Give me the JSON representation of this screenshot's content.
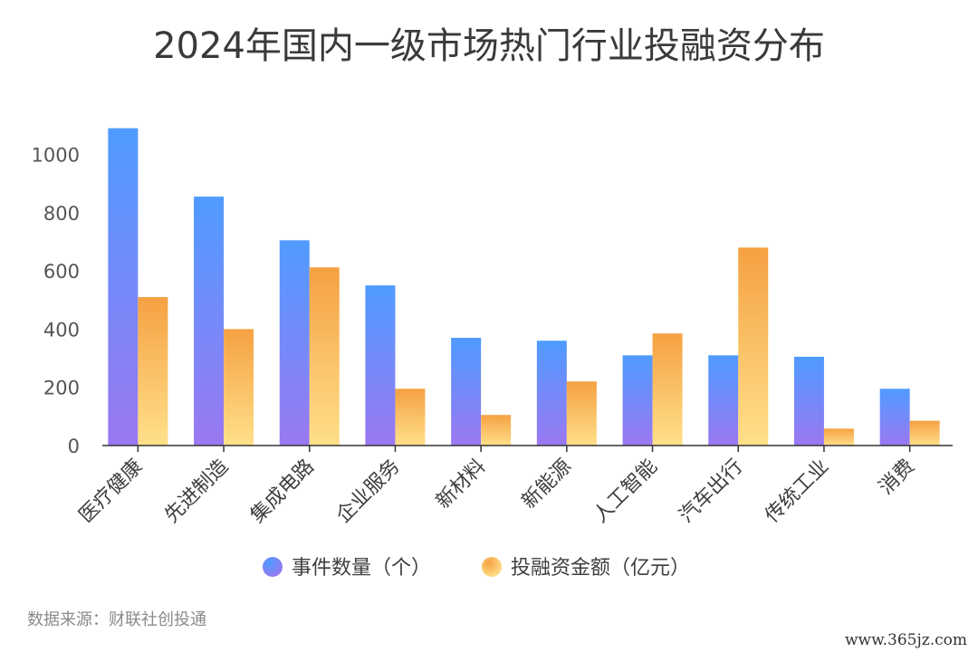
{
  "chart_data": {
    "type": "bar",
    "title": "2024年国内一级市场热门行业投融资分布",
    "categories": [
      "医疗健康",
      "先进制造",
      "集成电路",
      "企业服务",
      "新材料",
      "新能源",
      "人工智能",
      "汽车出行",
      "传统工业",
      "消费"
    ],
    "series": [
      {
        "name": "事件数量（个）",
        "values": [
          1090,
          855,
          705,
          550,
          370,
          360,
          310,
          310,
          305,
          195
        ],
        "color_top": "#4f9bff",
        "color_bottom": "#9b78f2"
      },
      {
        "name": "投融资金额（亿元）",
        "values": [
          510,
          400,
          612,
          195,
          105,
          220,
          385,
          680,
          58,
          85
        ],
        "color_top": "#f5a142",
        "color_bottom": "#ffe08a"
      }
    ],
    "yticks": [
      0,
      200,
      400,
      600,
      800,
      1000
    ],
    "ylim": [
      0,
      1000
    ],
    "grid": false,
    "legend_position": "bottom"
  },
  "source_text": "数据来源：财联社创投通",
  "watermark_text": "www.365jz.com"
}
